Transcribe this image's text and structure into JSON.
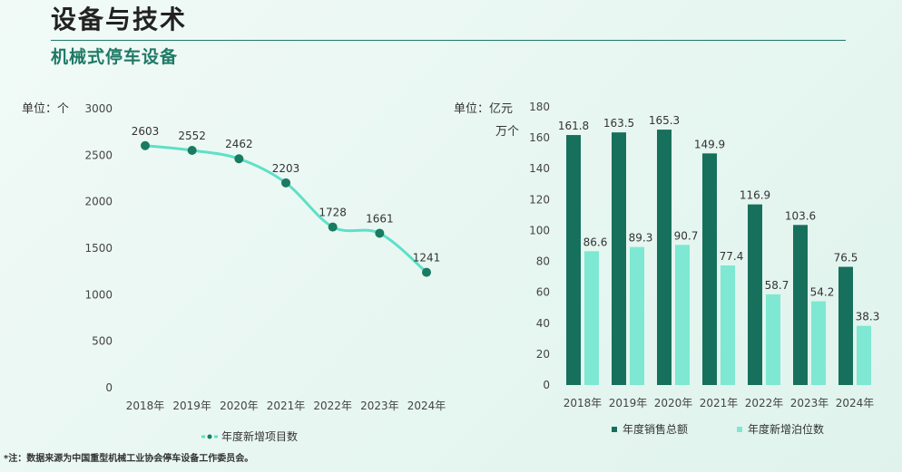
{
  "header": {
    "title": "设备与技术",
    "subtitle": "机械式停车设备"
  },
  "footnote": "*注：数据来源为中国重型机械工业协会停车设备工作委员会。",
  "colors": {
    "line": "#5ee0c8",
    "point": "#1a7a62",
    "bar_dark": "#17705c",
    "bar_light": "#7ee8d2",
    "rule": "#1f7a66"
  },
  "chart_data": [
    {
      "type": "line",
      "unit_label": "单位：个",
      "categories": [
        "2018年",
        "2019年",
        "2020年",
        "2021年",
        "2022年",
        "2023年",
        "2024年"
      ],
      "series": [
        {
          "name": "年度新增项目数",
          "values": [
            2603,
            2552,
            2462,
            2203,
            1728,
            1661,
            1241
          ]
        }
      ],
      "yticks": [
        "3000",
        "2500",
        "2000",
        "1500",
        "1000",
        "500",
        "0"
      ],
      "ylim": [
        0,
        3000
      ],
      "legend_position": "bottom"
    },
    {
      "type": "bar",
      "unit_label_1": "单位：亿元",
      "unit_label_2": "万个",
      "categories": [
        "2018年",
        "2019年",
        "2020年",
        "2021年",
        "2022年",
        "2023年",
        "2024年"
      ],
      "series": [
        {
          "name": "年度销售总额",
          "values": [
            161.8,
            163.5,
            165.3,
            149.9,
            116.9,
            103.6,
            76.5
          ]
        },
        {
          "name": "年度新增泊位数",
          "values": [
            86.6,
            89.3,
            90.7,
            77.4,
            58.7,
            54.2,
            38.3
          ]
        }
      ],
      "yticks": [
        "180",
        "160",
        "140",
        "120",
        "100",
        "80",
        "60",
        "40",
        "20",
        "0"
      ],
      "ylim": [
        0,
        180
      ],
      "legend_position": "bottom"
    }
  ]
}
